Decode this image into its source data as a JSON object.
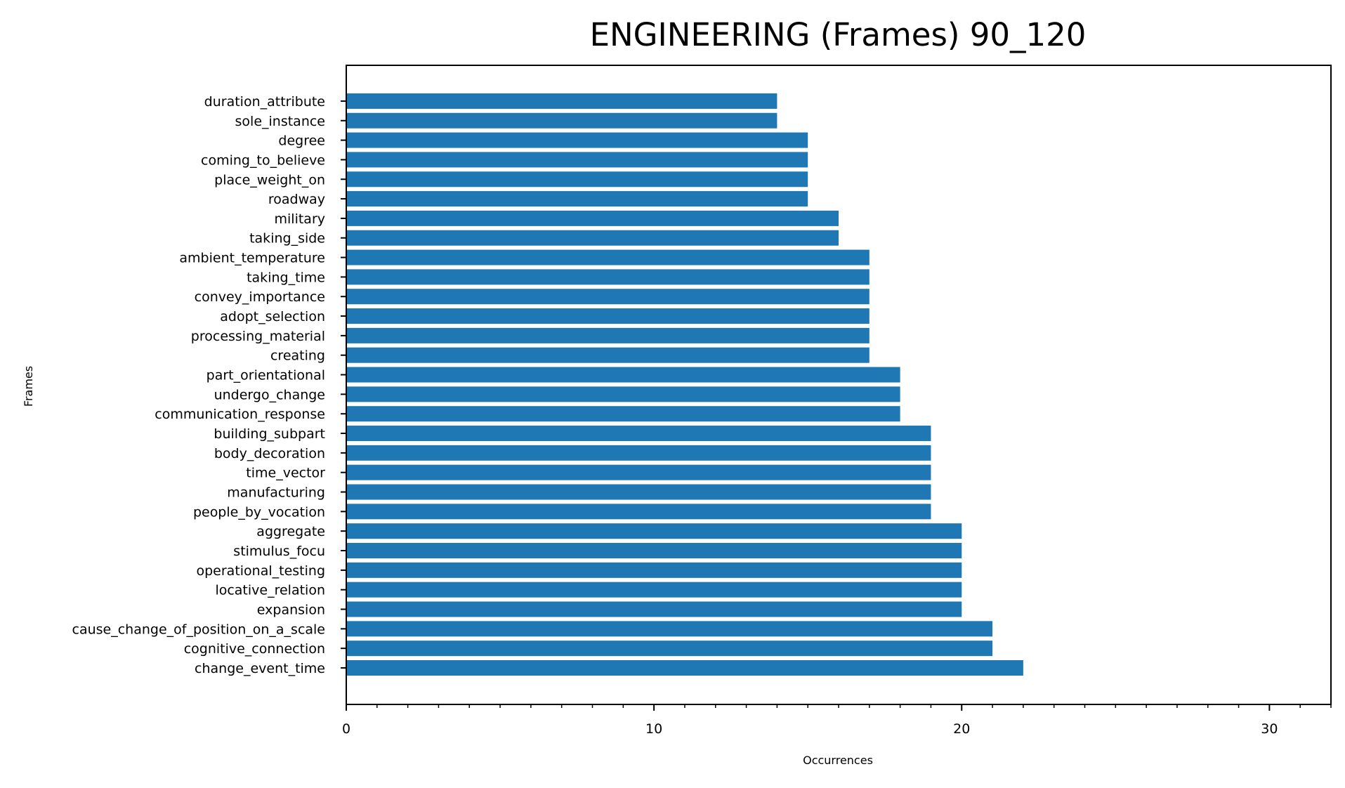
{
  "chart_data": {
    "type": "bar",
    "orientation": "horizontal",
    "title": "ENGINEERING (Frames) 90_120",
    "xlabel": "Occurrences",
    "ylabel": "Frames",
    "xlim": [
      0,
      32
    ],
    "xticks": [
      0,
      10,
      20,
      30
    ],
    "xtick_labels": [
      "0",
      "10",
      "20",
      "30"
    ],
    "grid": false,
    "bar_color": "#1f77b4",
    "categories": [
      "change_event_time",
      "cognitive_connection",
      "cause_change_of_position_on_a_scale",
      "expansion",
      "locative_relation",
      "operational_testing",
      "stimulus_focu",
      "aggregate",
      "people_by_vocation",
      "manufacturing",
      "time_vector",
      "body_decoration",
      "building_subpart",
      "communication_response",
      "undergo_change",
      "part_orientational",
      "creating",
      "processing_material",
      "adopt_selection",
      "convey_importance",
      "taking_time",
      "ambient_temperature",
      "taking_side",
      "military",
      "roadway",
      "place_weight_on",
      "coming_to_believe",
      "degree",
      "sole_instance",
      "duration_attribute"
    ],
    "values": [
      22,
      21,
      21,
      20,
      20,
      20,
      20,
      20,
      19,
      19,
      19,
      19,
      19,
      18,
      18,
      18,
      17,
      17,
      17,
      17,
      17,
      17,
      16,
      16,
      15,
      15,
      15,
      15,
      14,
      14
    ]
  }
}
